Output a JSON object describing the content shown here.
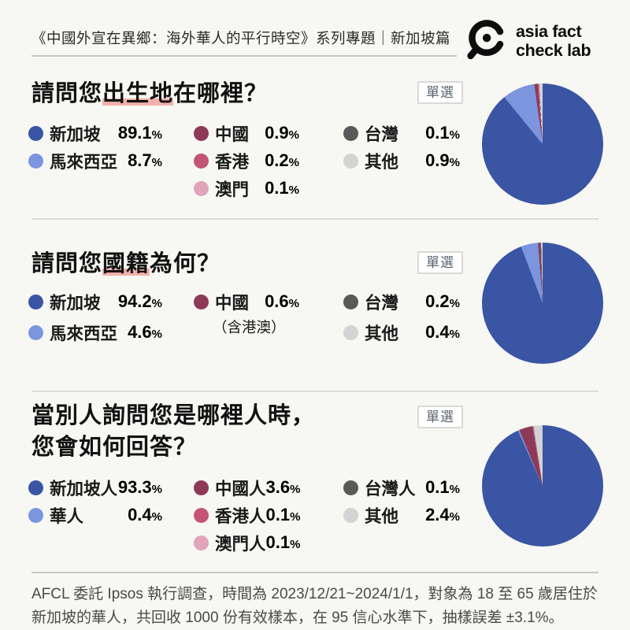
{
  "page": {
    "background": "#F7F7F4"
  },
  "header": {
    "title": "《中國外宣在異鄉：海外華人的平行時空》系列專題｜新加坡篇",
    "logo_line1": "asia fact",
    "logo_line2": "check lab",
    "logo_icon": "magnifier-icon"
  },
  "badge_label": "單選",
  "percent_sign": "%",
  "colors": {
    "singapore_blue": "#3A55A4",
    "malaysia_light_blue": "#7B96DF",
    "china_maroon": "#8F3958",
    "hongkong_rose": "#C25578",
    "macau_pink": "#E2A4BB",
    "taiwan_dark_gray": "#595959",
    "other_light_gray": "#D3D3D3",
    "highlight_underline": "#F2B1AA"
  },
  "sections": [
    {
      "title_prefix": "請問您",
      "title_highlight": "出生地",
      "title_suffix": "在哪裡？",
      "legend_columns": [
        [
          {
            "label": "新加坡",
            "value": "89.1",
            "color": "#3A55A4"
          },
          {
            "label": "馬來西亞",
            "value": "8.7",
            "color": "#7B96DF"
          }
        ],
        [
          {
            "label": "中國",
            "value": "0.9",
            "color": "#8F3958"
          },
          {
            "label": "香港",
            "value": "0.2",
            "color": "#C25578"
          },
          {
            "label": "澳門",
            "value": "0.1",
            "color": "#E2A4BB"
          }
        ],
        [
          {
            "label": "台灣",
            "value": "0.1",
            "color": "#595959"
          },
          {
            "label": "其他",
            "value": "0.9",
            "color": "#D3D3D3"
          }
        ]
      ]
    },
    {
      "title_prefix": "請問您",
      "title_highlight": "國籍",
      "title_suffix": "為何？",
      "legend_columns": [
        [
          {
            "label": "新加坡",
            "value": "94.2",
            "color": "#3A55A4"
          },
          {
            "label": "馬來西亞",
            "value": "4.6",
            "color": "#7B96DF"
          }
        ],
        [
          {
            "label": "中國",
            "value": "0.6",
            "note": "（含港澳）",
            "color": "#8F3958"
          }
        ],
        [
          {
            "label": "台灣",
            "value": "0.2",
            "color": "#595959"
          },
          {
            "label": "其他",
            "value": "0.4",
            "color": "#D3D3D3"
          }
        ]
      ]
    },
    {
      "title_line1": "當別人詢問您是哪裡人時，",
      "title_line2": "您會如何回答？",
      "legend_columns": [
        [
          {
            "label": "新加坡人",
            "value": "93.3",
            "color": "#3A55A4"
          },
          {
            "label": "華人",
            "value": "0.4",
            "color": "#7B96DF"
          }
        ],
        [
          {
            "label": "中國人",
            "value": "3.6",
            "color": "#8F3958"
          },
          {
            "label": "香港人",
            "value": "0.1",
            "color": "#C25578"
          },
          {
            "label": "澳門人",
            "value": "0.1",
            "color": "#E2A4BB"
          }
        ],
        [
          {
            "label": "台灣人",
            "value": "0.1",
            "color": "#595959"
          },
          {
            "label": "其他",
            "value": "2.4",
            "color": "#D3D3D3"
          }
        ]
      ]
    }
  ],
  "chart_data": [
    {
      "type": "pie",
      "title": "請問您出生地在哪裡？",
      "categories": [
        "新加坡",
        "馬來西亞",
        "中國",
        "香港",
        "澳門",
        "台灣",
        "其他"
      ],
      "values": [
        89.1,
        8.7,
        0.9,
        0.2,
        0.1,
        0.1,
        0.9
      ],
      "colors": [
        "#3A55A4",
        "#7B96DF",
        "#8F3958",
        "#C25578",
        "#E2A4BB",
        "#595959",
        "#D3D3D3"
      ],
      "start_angle_deg": 0,
      "direction": "clockwise",
      "legend_position": "left"
    },
    {
      "type": "pie",
      "title": "請問您國籍為何？",
      "categories": [
        "新加坡",
        "馬來西亞",
        "中國（含港澳）",
        "台灣",
        "其他"
      ],
      "values": [
        94.2,
        4.6,
        0.6,
        0.2,
        0.4
      ],
      "colors": [
        "#3A55A4",
        "#7B96DF",
        "#8F3958",
        "#595959",
        "#D3D3D3"
      ],
      "start_angle_deg": 0,
      "direction": "clockwise",
      "legend_position": "left"
    },
    {
      "type": "pie",
      "title": "當別人詢問您是哪裡人時，您會如何回答？",
      "categories": [
        "新加坡人",
        "華人",
        "中國人",
        "香港人",
        "澳門人",
        "台灣人",
        "其他"
      ],
      "values": [
        93.3,
        0.4,
        3.6,
        0.1,
        0.1,
        0.1,
        2.4
      ],
      "colors": [
        "#3A55A4",
        "#7B96DF",
        "#8F3958",
        "#C25578",
        "#E2A4BB",
        "#595959",
        "#D3D3D3"
      ],
      "start_angle_deg": 0,
      "direction": "clockwise",
      "legend_position": "left"
    }
  ],
  "footer": {
    "line1": "AFCL 委託 Ipsos 執行調查，時間為 2023/12/21~2024/1/1，對象為 18 至 65 歲居住於",
    "line2": "新加坡的華人，共回收 1000 份有效樣本，在 95 信心水準下，抽樣誤差 ±3.1%。"
  }
}
